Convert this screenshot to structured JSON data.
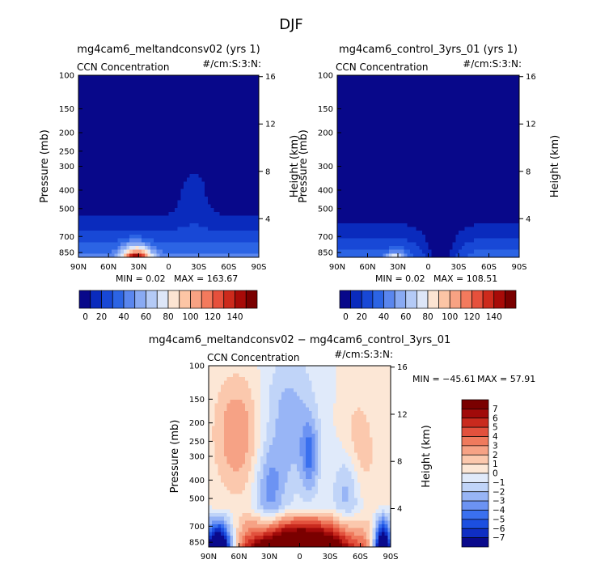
{
  "figure_title": "DJF",
  "colors": {
    "seq": [
      "#08088a",
      "#0a2bbd",
      "#1848d6",
      "#2c64e4",
      "#5a86ee",
      "#89aaf3",
      "#b4caf6",
      "#dde6f8",
      "#fce4d2",
      "#fcc5a5",
      "#f8a283",
      "#f37a5d",
      "#e6503c",
      "#cd2a1c",
      "#a80b08",
      "#7a0000"
    ],
    "div": [
      "#0a0a8c",
      "#0f2ec4",
      "#1c4fe0",
      "#3a70ef",
      "#6c93f3",
      "#98b5f6",
      "#c0d4f8",
      "#e0eafa",
      "#fce7d6",
      "#fbc8ad",
      "#f6a285",
      "#ef7a5d",
      "#e2513d",
      "#c92a1e",
      "#a10a0a",
      "#7a0000"
    ]
  },
  "chart_data": [
    {
      "type": "contour",
      "title": "mg4cam6_meltandconsv02 (yrs 1)",
      "left_label": "CCN Concentration",
      "right_label": "#/cm:S:3:N:",
      "xlabel": "",
      "ylabel": "Pressure (mb)",
      "ylabel_right": "Height (km)",
      "x_ticks": [
        "90N",
        "60N",
        "30N",
        "0",
        "30S",
        "60S",
        "90S"
      ],
      "y_ticks": [
        "100",
        "150",
        "200",
        "250",
        "300",
        "400",
        "500",
        "700",
        "850"
      ],
      "y_right_ticks": [
        "4",
        "8",
        "12",
        "16"
      ],
      "min_label": "MIN =   0.02",
      "max_label": "MAX = 163.67",
      "levels": [
        10,
        20,
        30,
        40,
        50,
        60,
        70,
        80,
        90,
        100,
        110,
        120,
        130,
        140,
        150
      ],
      "colorbar_labels": [
        "0",
        "20",
        "40",
        "60",
        "80",
        "100",
        "120",
        "140"
      ],
      "field": "meltandconsv02",
      "peak": {
        "lat": 32,
        "pressure_mb": 850,
        "value": 163.67
      }
    },
    {
      "type": "contour",
      "title": "mg4cam6_control_3yrs_01 (yrs 1)",
      "left_label": "CCN Concentration",
      "right_label": "#/cm:S:3:N:",
      "xlabel": "",
      "ylabel": "Pressure (mb)",
      "ylabel_right": "Height (km)",
      "x_ticks": [
        "90N",
        "60N",
        "30N",
        "0",
        "30S",
        "60S",
        "90S"
      ],
      "y_ticks": [
        "100",
        "150",
        "200",
        "300",
        "400",
        "500",
        "700",
        "850"
      ],
      "y_right_ticks": [
        "4",
        "8",
        "12",
        "16"
      ],
      "min_label": "MIN =   0.02",
      "max_label": "MAX = 108.51",
      "levels": [
        10,
        20,
        30,
        40,
        50,
        60,
        70,
        80,
        90,
        100,
        110,
        120,
        130,
        140,
        150
      ],
      "colorbar_labels": [
        "0",
        "20",
        "40",
        "60",
        "80",
        "100",
        "120",
        "140"
      ],
      "field": "control",
      "peak": {
        "lat": 32,
        "pressure_mb": 850,
        "value": 108.51
      }
    },
    {
      "type": "contour",
      "title": "mg4cam6_meltandconsv02 − mg4cam6_control_3yrs_01",
      "left_label": "CCN Concentration",
      "right_label": "#/cm:S:3:N:",
      "xlabel": "",
      "ylabel": "Pressure (mb)",
      "ylabel_right": "Height (km)",
      "x_ticks": [
        "90N",
        "60N",
        "30N",
        "0",
        "30S",
        "60S",
        "90S"
      ],
      "y_ticks": [
        "100",
        "150",
        "200",
        "250",
        "300",
        "400",
        "500",
        "700",
        "850"
      ],
      "y_right_ticks": [
        "4",
        "8",
        "12",
        "16"
      ],
      "min_label": "MIN = −45.61",
      "max_label": "MAX =  57.91",
      "levels": [
        -7,
        -6,
        -5,
        -4,
        -3,
        -2,
        -1,
        0,
        1,
        2,
        3,
        4,
        5,
        6,
        7
      ],
      "colorbar_labels": [
        "7",
        "6",
        "5",
        "4",
        "3",
        "2",
        "1",
        "0",
        "−1",
        "−2",
        "−3",
        "−4",
        "−5",
        "−6",
        "−7"
      ],
      "field": "difference"
    }
  ]
}
